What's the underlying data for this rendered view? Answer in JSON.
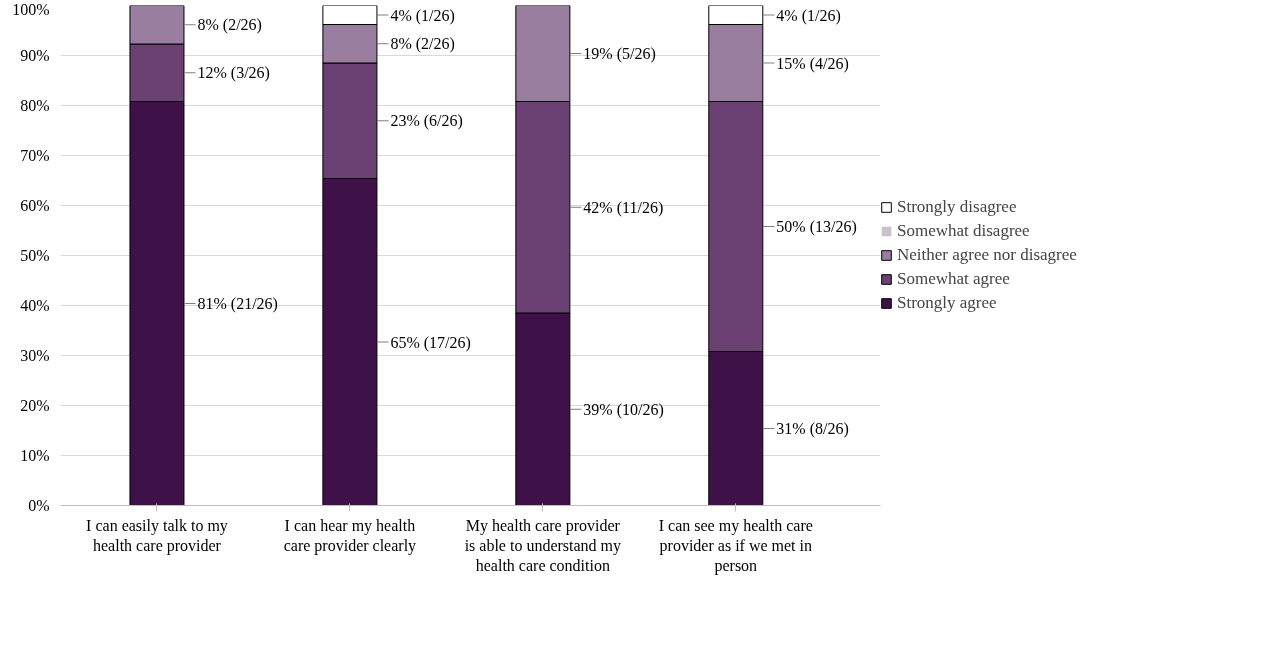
{
  "chart_data": {
    "type": "bar",
    "stacked": true,
    "categories": [
      "I can easily talk to my health care provider",
      "I can hear my health care provider clearly",
      "My health care provider is able to understand my health care condition",
      "I can see my health care provider as if we met in person"
    ],
    "series": [
      {
        "name": "Strongly agree",
        "color": "#3f1149",
        "values": [
          80.8,
          65.4,
          38.5,
          30.8
        ],
        "value_labels": [
          "81% (21/26)",
          "65% (17/26)",
          "39% (10/26)",
          "31% (8/26)"
        ]
      },
      {
        "name": "Somewhat agree",
        "color": "#6a4172",
        "values": [
          11.5,
          23.1,
          42.3,
          50.0
        ],
        "value_labels": [
          "12% (3/26)",
          "23% (6/26)",
          "42% (11/26)",
          "50% (13/26)"
        ]
      },
      {
        "name": "Neither agree nor disagree",
        "color": "#997ea0",
        "values": [
          7.7,
          7.7,
          19.2,
          15.4
        ],
        "value_labels": [
          "8% (2/26)",
          "8% (2/26)",
          "19% (5/26)",
          "15% (4/26)"
        ]
      },
      {
        "name": "Somewhat disagree",
        "color": "#cbbfd0",
        "values": [
          0,
          0,
          0,
          0
        ],
        "value_labels": [
          null,
          null,
          null,
          null
        ]
      },
      {
        "name": "Strongly disagree",
        "color": "#ffffff",
        "values": [
          0,
          3.8,
          0,
          3.8
        ],
        "value_labels": [
          null,
          "4% (1/26)",
          null,
          "4% (1/26)"
        ]
      }
    ],
    "ylim": [
      0,
      100
    ],
    "yticks": [
      {
        "value": 0,
        "label": "0%"
      },
      {
        "value": 10,
        "label": "10%"
      },
      {
        "value": 20,
        "label": "20%"
      },
      {
        "value": 30,
        "label": "30%"
      },
      {
        "value": 40,
        "label": "40%"
      },
      {
        "value": 50,
        "label": "50%"
      },
      {
        "value": 60,
        "label": "60%"
      },
      {
        "value": 70,
        "label": "70%"
      },
      {
        "value": 80,
        "label": "80%"
      },
      {
        "value": 90,
        "label": "90%"
      },
      {
        "value": 100,
        "label": "100%"
      }
    ],
    "grid": "y",
    "legend": "right"
  }
}
